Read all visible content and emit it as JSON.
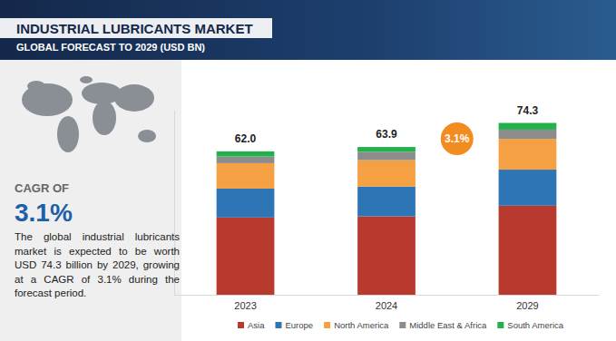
{
  "chart_data": {
    "type": "bar",
    "stacked": true,
    "title": "INDUSTRIAL LUBRICANTS MARKET",
    "subtitle": "GLOBAL FORECAST TO 2029 (USD BN)",
    "categories": [
      "2023",
      "2024",
      "2029"
    ],
    "series": [
      {
        "name": "Asia",
        "color": "#b83a2e",
        "values": [
          33.4,
          33.9,
          38.5
        ]
      },
      {
        "name": "Europe",
        "color": "#2e75b6",
        "values": [
          12.5,
          12.9,
          15.6
        ]
      },
      {
        "name": "North America",
        "color": "#f5a042",
        "values": [
          11.0,
          11.4,
          13.3
        ]
      },
      {
        "name": "Middle East & Africa",
        "color": "#8c8c8c",
        "values": [
          2.9,
          3.6,
          4.0
        ]
      },
      {
        "name": "South America",
        "color": "#22b14c",
        "values": [
          2.2,
          2.1,
          2.9
        ]
      }
    ],
    "totals": [
      62.0,
      63.9,
      74.3
    ],
    "total_labels": [
      "62.0",
      "63.9",
      "74.3"
    ],
    "ylim": [
      0,
      80
    ],
    "tick_labels": "x",
    "legend": "bottom",
    "annotations": {
      "growth_badge": "3.1%",
      "cagr_heading": "CAGR OF",
      "cagr_value": "3.1%",
      "description": "The global industrial lubricants market is expected to be worth USD 74.3 billion by 2029, growing at a CAGR of 3.1% during the forecast period."
    }
  }
}
